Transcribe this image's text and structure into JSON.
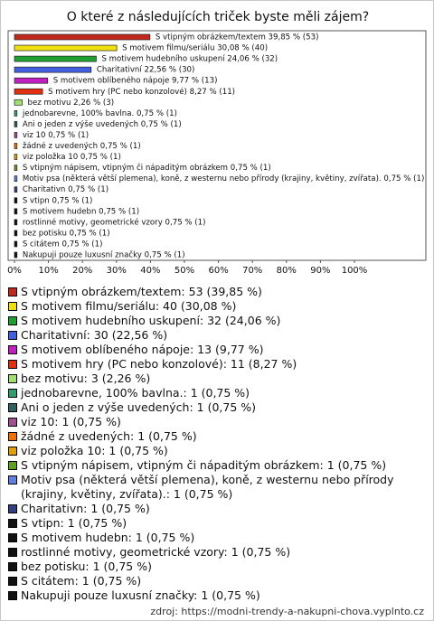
{
  "chart_data": {
    "type": "hbar",
    "title": "O které z následujících triček byste měli zájem?",
    "values": [
      39.85,
      30.08,
      24.06,
      22.56,
      9.77,
      8.27,
      2.26,
      0.75,
      0.75,
      0.75,
      0.75,
      0.75,
      0.75,
      0.75,
      0.75,
      0.75,
      0.75,
      0.75,
      0.75,
      0.75,
      0.75
    ],
    "value_labels": [
      "S vtipným obrázkem/textem 39,85 % (53)",
      "S motivem filmu/seriálu 30,08 % (40)",
      "S motivem hudebního uskupení 24,06 % (32)",
      "Charitativní 22,56 % (30)",
      "S motivem oblíbeného nápoje 9,77 % (13)",
      "S motivem hry (PC nebo konzolové) 8,27 % (11)",
      "bez motivu 2,26 % (3)",
      "jednobarevne, 100% bavlna. 0,75 % (1)",
      "Ani o jeden z výše uvedených 0,75 % (1)",
      "viz 10 0,75 % (1)",
      "žádné z uvedených 0,75 % (1)",
      "viz položka 10 0,75 % (1)",
      "S vtipným nápisem, vtipným či nápaditým obrázkem 0,75 % (1)",
      "Motiv psa (některá větší plemena), koně, z westernu nebo přírody (krajiny, květiny, zvířata). 0,75 % (1)",
      "Charitativn 0,75 % (1)",
      "S vtipn 0,75 % (1)",
      "S motivem hudebn 0,75 % (1)",
      "rostlinné motivy, geometrické vzory 0,75 % (1)",
      "bez potisku 0,75 % (1)",
      "S citátem 0,75 % (1)",
      "Nakupuji pouze luxusní značky 0,75 % (1)"
    ],
    "legend_labels": [
      "S vtipným obrázkem/textem: 53 (39,85 %)",
      "S motivem filmu/seriálu: 40 (30,08 %)",
      "S motivem hudebního uskupení: 32 (24,06 %)",
      "Charitativní: 30 (22,56 %)",
      "S motivem oblíbeného nápoje: 13 (9,77 %)",
      "S motivem hry (PC nebo konzolové): 11 (8,27 %)",
      "bez motivu: 3 (2,26 %)",
      "jednobarevne, 100% bavlna.: 1 (0,75 %)",
      "Ani o jeden z výše uvedených: 1 (0,75 %)",
      "viz 10: 1 (0,75 %)",
      "žádné z uvedených: 1 (0,75 %)",
      "viz položka 10: 1 (0,75 %)",
      "S vtipným nápisem, vtipným či nápaditým obrázkem: 1 (0,75 %)",
      "Motiv psa (některá větší plemena), koně, z westernu nebo přírody (krajiny, květiny, zvířata).: 1 (0,75 %)",
      "Charitativn: 1 (0,75 %)",
      "S vtipn: 1 (0,75 %)",
      "S motivem hudebn: 1 (0,75 %)",
      "rostlinné motivy, geometrické vzory: 1 (0,75 %)",
      "bez potisku: 1 (0,75 %)",
      "S citátem: 1 (0,75 %)",
      "Nakupuji pouze luxusní značky: 1 (0,75 %)"
    ],
    "colors": [
      "#c0281e",
      "#f0e010",
      "#20a030",
      "#4060e0",
      "#c020c0",
      "#e03010",
      "#a0e070",
      "#30a070",
      "#306060",
      "#a05090",
      "#f07000",
      "#e0a000",
      "#60a020",
      "#6080e0",
      "#304080",
      "#111111",
      "#111111",
      "#111111",
      "#111111",
      "#111111",
      "#111111"
    ],
    "xlim": [
      0,
      100
    ],
    "xticks": [
      {
        "value": 0,
        "label": "0%"
      },
      {
        "value": 10,
        "label": "10%"
      },
      {
        "value": 20,
        "label": "20%"
      },
      {
        "value": 30,
        "label": "30%"
      },
      {
        "value": 40,
        "label": "40%"
      },
      {
        "value": 50,
        "label": "50%"
      },
      {
        "value": 60,
        "label": "60%"
      },
      {
        "value": 70,
        "label": "70%"
      },
      {
        "value": 80,
        "label": "80%"
      },
      {
        "value": 90,
        "label": "90%"
      },
      {
        "value": 100,
        "label": "100%"
      }
    ],
    "source": "zdroj: https://modni-trendy-a-nakupni-chova.vyplnto.cz"
  }
}
